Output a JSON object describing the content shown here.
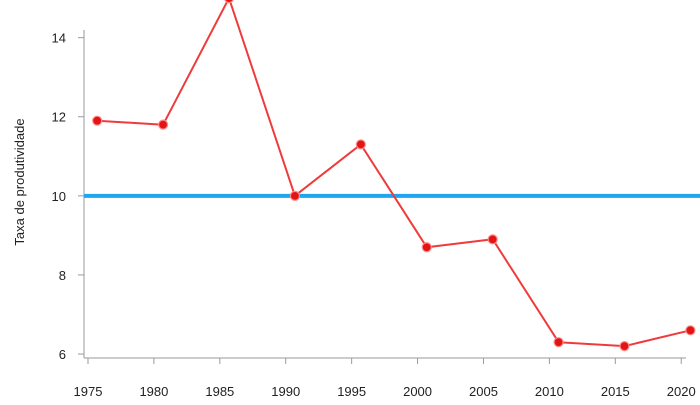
{
  "chart_data": {
    "type": "line",
    "title": "",
    "xlabel": "",
    "ylabel": "Taxa de produtividade",
    "x": [
      1976,
      1981,
      1986,
      1991,
      1996,
      2001,
      2006,
      2011,
      2016,
      2021
    ],
    "series": [
      {
        "name": "",
        "color": "#ee3b3b",
        "values": [
          11.9,
          11.8,
          15.0,
          10.0,
          11.3,
          8.7,
          8.9,
          6.3,
          6.2,
          6.6
        ]
      }
    ],
    "reference_line": {
      "y": 10,
      "color": "#1ea7ee"
    },
    "xticks": [
      1975,
      1980,
      1985,
      1990,
      1995,
      2000,
      2005,
      2010,
      2015,
      2020
    ],
    "yticks": [
      6,
      8,
      10,
      12,
      14
    ],
    "xlim": [
      1975,
      2021.5
    ],
    "ylim": [
      5.9,
      14.8
    ],
    "grid": false,
    "legend": "none"
  }
}
